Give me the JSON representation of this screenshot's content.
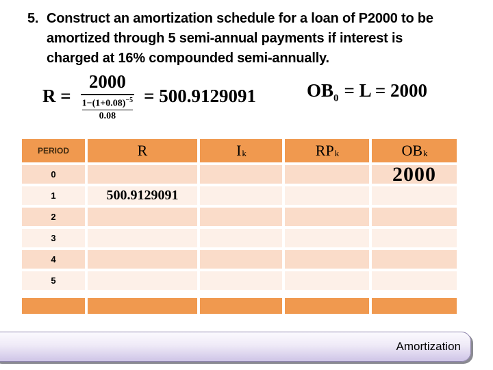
{
  "title": {
    "number": "5.",
    "lines": [
      "Construct an amortization schedule for a loan of P2000 to be",
      "amortized through 5 semi-annual payments if interest is",
      "charged at 16% compounded semi-annually."
    ]
  },
  "formulas": {
    "r": {
      "lhs": "R =",
      "numerator": "2000",
      "denom_num_base": "1−(1+0.08)",
      "denom_num_exp": "−5",
      "denom_den": "0.08",
      "rhs": "= 500.9129091"
    },
    "ob": {
      "base": "OB",
      "sub": "0",
      "rest": "= L = 2000"
    }
  },
  "table": {
    "headers": {
      "period": "PERIOD",
      "r": "R",
      "i_base": "I",
      "i_sub": "k",
      "rp_base": "RP",
      "rp_sub": "k",
      "ob_base": "OB",
      "ob_sub": "k"
    },
    "rows": [
      {
        "period": "0",
        "r": "",
        "i": "",
        "rp": "",
        "ob": "2000"
      },
      {
        "period": "1",
        "r": "500.9129091",
        "i": "",
        "rp": "",
        "ob": ""
      },
      {
        "period": "2",
        "r": "",
        "i": "",
        "rp": "",
        "ob": ""
      },
      {
        "period": "3",
        "r": "",
        "i": "",
        "rp": "",
        "ob": ""
      },
      {
        "period": "4",
        "r": "",
        "i": "",
        "rp": "",
        "ob": ""
      },
      {
        "period": "5",
        "r": "",
        "i": "",
        "rp": "",
        "ob": ""
      }
    ]
  },
  "footer_tab": {
    "label": "Amortization"
  },
  "colors": {
    "header_orange": "#F0994F",
    "row_dark": "#FADCC9",
    "row_light": "#FDF0E8",
    "period_text": "#3F2A10",
    "tab_top": "#FBFAFE",
    "tab_mid": "#EFEAF7",
    "tab_bottom": "#CFC5E7",
    "tab_border": "#8F85AD",
    "tab_shadow": "#8A8A92"
  }
}
